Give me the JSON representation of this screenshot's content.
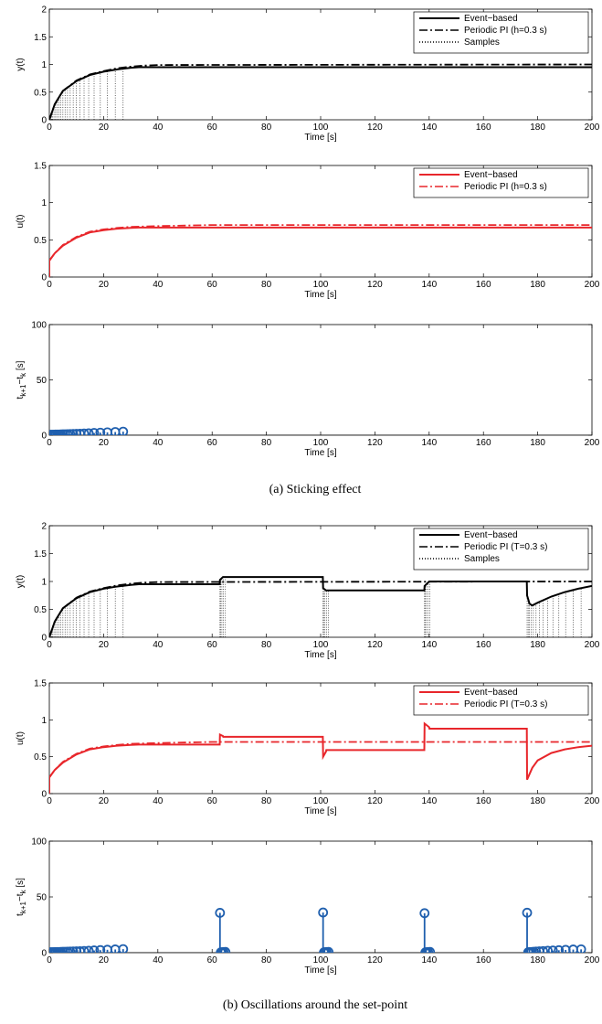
{
  "captions": [
    "(a)  Sticking effect",
    "(b)  Oscillations around the set-point"
  ],
  "chart_data": [
    {
      "type": "line",
      "figure": "a",
      "xlabel": "Time [s]",
      "ylabel": "y(t)",
      "xlim": [
        0,
        200
      ],
      "ylim": [
        0,
        2
      ],
      "xticks": [
        0,
        20,
        40,
        60,
        80,
        100,
        120,
        140,
        160,
        180,
        200
      ],
      "yticks": [
        0,
        0.5,
        1,
        1.5,
        2
      ],
      "legend_position": "top-right",
      "series": [
        {
          "name": "Event−based",
          "color": "#000000",
          "style": "solid",
          "x": [
            0,
            2,
            5,
            10,
            15,
            20,
            25,
            30,
            33,
            200
          ],
          "y": [
            0,
            0.28,
            0.52,
            0.7,
            0.81,
            0.87,
            0.91,
            0.94,
            0.95,
            0.95
          ]
        },
        {
          "name": "Periodic PI (h=0.3 s)",
          "color": "#000000",
          "style": "dashdot",
          "x": [
            0,
            2,
            5,
            10,
            15,
            20,
            25,
            30,
            35,
            40,
            200
          ],
          "y": [
            0,
            0.28,
            0.52,
            0.71,
            0.82,
            0.88,
            0.93,
            0.96,
            0.98,
            0.99,
            1.0
          ]
        },
        {
          "name": "Samples",
          "color": "#000000",
          "style": "dotted",
          "kind": "samples",
          "x": [
            0.4,
            0.8,
            1.2,
            1.7,
            2.3,
            2.9,
            3.5,
            4.2,
            5,
            5.8,
            6.7,
            7.7,
            8.8,
            10,
            11.3,
            12.8,
            14.5,
            16.5,
            18.8,
            21.4,
            24.3,
            27.2
          ]
        }
      ]
    },
    {
      "type": "line",
      "figure": "a",
      "xlabel": "Time [s]",
      "ylabel": "u(t)",
      "xlim": [
        0,
        200
      ],
      "ylim": [
        0,
        1.5
      ],
      "xticks": [
        0,
        20,
        40,
        60,
        80,
        100,
        120,
        140,
        160,
        180,
        200
      ],
      "yticks": [
        0,
        0.5,
        1,
        1.5
      ],
      "legend_position": "top-right",
      "series": [
        {
          "name": "Event−based",
          "color": "#e8262b",
          "style": "solid",
          "x": [
            0,
            0,
            2,
            5,
            10,
            15,
            20,
            25,
            30,
            33,
            200
          ],
          "y": [
            0,
            0.22,
            0.32,
            0.42,
            0.53,
            0.6,
            0.63,
            0.65,
            0.66,
            0.665,
            0.665
          ]
        },
        {
          "name": "Periodic PI (h=0.3 s)",
          "color": "#e8262b",
          "style": "dashdot",
          "x": [
            0,
            0,
            2,
            5,
            10,
            15,
            20,
            25,
            30,
            40,
            60,
            200
          ],
          "y": [
            0,
            0.22,
            0.32,
            0.43,
            0.54,
            0.61,
            0.64,
            0.66,
            0.675,
            0.685,
            0.7,
            0.7
          ]
        }
      ]
    },
    {
      "type": "scatter",
      "figure": "a",
      "xlabel": "Time [s]",
      "ylabel": "t_{k+1}−t_{k} [s]",
      "xlim": [
        0,
        200
      ],
      "ylim": [
        0,
        100
      ],
      "xticks": [
        0,
        20,
        40,
        60,
        80,
        100,
        120,
        140,
        160,
        180,
        200
      ],
      "yticks": [
        0,
        50,
        100
      ],
      "series": [
        {
          "color": "#1f5fae",
          "marker": "circle-stem",
          "x": [
            0.4,
            0.8,
            1.2,
            1.7,
            2.3,
            2.9,
            3.5,
            4.2,
            5,
            5.8,
            6.7,
            7.7,
            8.8,
            10,
            11.3,
            12.8,
            14.5,
            16.5,
            18.8,
            21.4,
            24.3,
            27.2
          ],
          "y": [
            0.4,
            0.4,
            0.4,
            0.5,
            0.6,
            0.6,
            0.6,
            0.7,
            0.8,
            0.8,
            0.9,
            1.0,
            1.1,
            1.2,
            1.3,
            1.5,
            1.7,
            2.0,
            2.3,
            2.6,
            2.9,
            3.2
          ]
        }
      ]
    },
    {
      "type": "line",
      "figure": "b",
      "xlabel": "Time [s]",
      "ylabel": "y(t)",
      "xlim": [
        0,
        200
      ],
      "ylim": [
        0,
        2
      ],
      "xticks": [
        0,
        20,
        40,
        60,
        80,
        100,
        120,
        140,
        160,
        180,
        200
      ],
      "yticks": [
        0,
        0.5,
        1,
        1.5,
        2
      ],
      "legend_position": "top-right",
      "series": [
        {
          "name": "Event−based",
          "color": "#000000",
          "style": "solid",
          "x": [
            0,
            2,
            5,
            10,
            15,
            20,
            25,
            30,
            33,
            62.8,
            62.9,
            64,
            100.8,
            100.9,
            102,
            138.2,
            138.3,
            140,
            176,
            176.1,
            177,
            178,
            180,
            185,
            190,
            195,
            200
          ],
          "y": [
            0,
            0.28,
            0.52,
            0.7,
            0.81,
            0.87,
            0.91,
            0.94,
            0.95,
            0.95,
            1.03,
            1.08,
            1.08,
            0.88,
            0.84,
            0.84,
            0.92,
            1.0,
            1.0,
            0.75,
            0.6,
            0.57,
            0.62,
            0.73,
            0.81,
            0.87,
            0.92
          ]
        },
        {
          "name": "Periodic PI (T=0.3 s)",
          "color": "#000000",
          "style": "dashdot",
          "x": [
            0,
            2,
            5,
            10,
            15,
            20,
            25,
            30,
            35,
            40,
            200
          ],
          "y": [
            0,
            0.28,
            0.52,
            0.71,
            0.82,
            0.88,
            0.93,
            0.96,
            0.98,
            0.99,
            1.0
          ]
        },
        {
          "name": "Samples",
          "color": "#000000",
          "style": "dotted",
          "kind": "samples",
          "x": [
            0.4,
            0.8,
            1.2,
            1.7,
            2.3,
            2.9,
            3.5,
            4.2,
            5,
            5.8,
            6.7,
            7.7,
            8.8,
            10,
            11.3,
            12.8,
            14.5,
            16.5,
            18.8,
            21.4,
            24.3,
            27.2,
            62.9,
            63.2,
            63.6,
            64.2,
            64.9,
            100.9,
            101.2,
            101.6,
            102.2,
            102.9,
            138.3,
            138.6,
            139,
            139.6,
            140.3,
            176.1,
            176.5,
            177,
            177.6,
            178.4,
            179.4,
            180.6,
            182,
            183.7,
            185.6,
            187.8,
            190.3,
            193.1,
            196
          ]
        }
      ]
    },
    {
      "type": "line",
      "figure": "b",
      "xlabel": "Time [s]",
      "ylabel": "u(t)",
      "xlim": [
        0,
        200
      ],
      "ylim": [
        0,
        1.5
      ],
      "xticks": [
        0,
        20,
        40,
        60,
        80,
        100,
        120,
        140,
        160,
        180,
        200
      ],
      "yticks": [
        0,
        0.5,
        1,
        1.5
      ],
      "legend_position": "top-right",
      "series": [
        {
          "name": "Event−based",
          "color": "#e8262b",
          "style": "solid",
          "x": [
            0,
            0,
            2,
            5,
            10,
            15,
            20,
            25,
            30,
            33,
            62.8,
            62.9,
            64,
            64.1,
            100.8,
            100.9,
            102,
            102.1,
            138.2,
            138.3,
            140,
            140.1,
            176,
            176.1,
            178,
            180,
            185,
            190,
            195,
            200
          ],
          "y": [
            0,
            0.22,
            0.32,
            0.42,
            0.53,
            0.6,
            0.63,
            0.65,
            0.66,
            0.665,
            0.665,
            0.8,
            0.78,
            0.77,
            0.77,
            0.5,
            0.57,
            0.59,
            0.59,
            0.95,
            0.9,
            0.88,
            0.88,
            0.19,
            0.35,
            0.45,
            0.55,
            0.6,
            0.63,
            0.65
          ]
        },
        {
          "name": "Periodic PI (T=0.3 s)",
          "color": "#e8262b",
          "style": "dashdot",
          "x": [
            0,
            0,
            2,
            5,
            10,
            15,
            20,
            25,
            30,
            40,
            60,
            200
          ],
          "y": [
            0,
            0.22,
            0.32,
            0.43,
            0.54,
            0.61,
            0.64,
            0.66,
            0.675,
            0.685,
            0.7,
            0.7
          ]
        }
      ]
    },
    {
      "type": "scatter",
      "figure": "b",
      "xlabel": "Time [s]",
      "ylabel": "t_{k+1}−t_{k} [s]",
      "xlim": [
        0,
        200
      ],
      "ylim": [
        0,
        100
      ],
      "xticks": [
        0,
        20,
        40,
        60,
        80,
        100,
        120,
        140,
        160,
        180,
        200
      ],
      "yticks": [
        0,
        50,
        100
      ],
      "series": [
        {
          "color": "#1f5fae",
          "marker": "circle-stem",
          "x": [
            0.4,
            0.8,
            1.2,
            1.7,
            2.3,
            2.9,
            3.5,
            4.2,
            5,
            5.8,
            6.7,
            7.7,
            8.8,
            10,
            11.3,
            12.8,
            14.5,
            16.5,
            18.8,
            21.4,
            24.3,
            27.2,
            62.9,
            63.2,
            63.6,
            64.2,
            64.9,
            100.9,
            101.2,
            101.6,
            102.2,
            102.9,
            138.3,
            138.6,
            139,
            139.6,
            140.3,
            176.1,
            176.5,
            177,
            177.6,
            178.4,
            179.4,
            180.6,
            182,
            183.7,
            185.6,
            187.8,
            190.3,
            193.1,
            196
          ],
          "y": [
            0.4,
            0.4,
            0.4,
            0.5,
            0.6,
            0.6,
            0.6,
            0.7,
            0.8,
            0.8,
            0.9,
            1.0,
            1.1,
            1.2,
            1.3,
            1.5,
            1.7,
            2.0,
            2.3,
            2.6,
            2.9,
            3.2,
            35.7,
            0.3,
            0.4,
            0.6,
            0.7,
            36,
            0.3,
            0.4,
            0.6,
            0.7,
            35.4,
            0.3,
            0.4,
            0.6,
            0.7,
            35.8,
            0.4,
            0.5,
            0.6,
            0.8,
            1.0,
            1.2,
            1.4,
            1.7,
            1.9,
            2.2,
            2.5,
            2.8,
            3.0
          ]
        }
      ]
    }
  ]
}
